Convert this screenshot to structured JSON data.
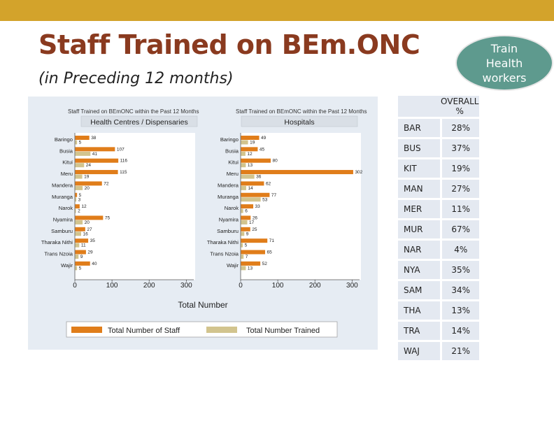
{
  "slide": {
    "title": "Staff Trained on BEm.ONC",
    "subtitle": "(in Preceding 12 months)",
    "badge_lines": [
      "Train",
      "Health",
      "workers"
    ]
  },
  "colors": {
    "bar_bg": "#d3a32b",
    "title": "#8a3a1f",
    "badge": "#5e9a8e",
    "staff": "#e07d1a",
    "trained": "#d2c48e"
  },
  "chart_data": [
    {
      "type": "bar",
      "orientation": "horizontal",
      "title": "Staff Trained on BEmONC within the Past 12 Months",
      "panel_title": "Health Centres / Dispensaries",
      "categories": [
        "Baringo",
        "Busia",
        "Kitui",
        "Meru",
        "Mandera",
        "Muranga",
        "Narok",
        "Nyamira",
        "Samburu",
        "Tharaka Nithi",
        "Trans Nzoia",
        "Wajir"
      ],
      "series": [
        {
          "name": "Total Number of Staff",
          "values": [
            38,
            107,
            116,
            115,
            72,
            5,
            12,
            75,
            27,
            35,
            29,
            40
          ],
          "color": "#e07d1a"
        },
        {
          "name": "Total Number Trained",
          "values": [
            5,
            41,
            24,
            19,
            20,
            3,
            2,
            20,
            16,
            11,
            9,
            5
          ],
          "color": "#d2c48e"
        }
      ],
      "xlim": [
        0,
        320
      ],
      "xticks": [
        "0",
        "100",
        "200",
        "300"
      ]
    },
    {
      "type": "bar",
      "orientation": "horizontal",
      "title": "Staff Trained on BEmONC within the Past 12 Months",
      "panel_title": "Hospitals",
      "categories": [
        "Baringo",
        "Busia",
        "Kitui",
        "Meru",
        "Mandera",
        "Muranga",
        "Narok",
        "Nyamira",
        "Samburu",
        "Tharaka Nithi",
        "Trans Nzoia",
        "Wajir"
      ],
      "series": [
        {
          "name": "Total Number of Staff",
          "values": [
            49,
            45,
            80,
            302,
            62,
            77,
            33,
            26,
            25,
            71,
            65,
            52
          ],
          "color": "#e07d1a"
        },
        {
          "name": "Total Number Trained",
          "values": [
            19,
            12,
            13,
            36,
            14,
            53,
            6,
            17,
            9,
            5,
            7,
            13
          ],
          "color": "#d2c48e"
        }
      ],
      "xlim": [
        0,
        320
      ],
      "xticks": [
        "0",
        "100",
        "200",
        "300"
      ]
    }
  ],
  "shared_axis": {
    "xlabel": "Total Number"
  },
  "legend": [
    "Total Number of Staff",
    "Total Number Trained"
  ],
  "overall": {
    "header": "OVERALL %",
    "rows": [
      {
        "code": "BAR",
        "pct": "28%"
      },
      {
        "code": "BUS",
        "pct": "37%"
      },
      {
        "code": "KIT",
        "pct": "19%"
      },
      {
        "code": "MAN",
        "pct": "27%"
      },
      {
        "code": "MER",
        "pct": "11%"
      },
      {
        "code": "MUR",
        "pct": "67%"
      },
      {
        "code": "NAR",
        "pct": "4%"
      },
      {
        "code": "NYA",
        "pct": "35%"
      },
      {
        "code": "SAM",
        "pct": "34%"
      },
      {
        "code": "THA",
        "pct": "13%"
      },
      {
        "code": "TRA",
        "pct": "14%"
      },
      {
        "code": "WAJ",
        "pct": "21%"
      }
    ]
  }
}
